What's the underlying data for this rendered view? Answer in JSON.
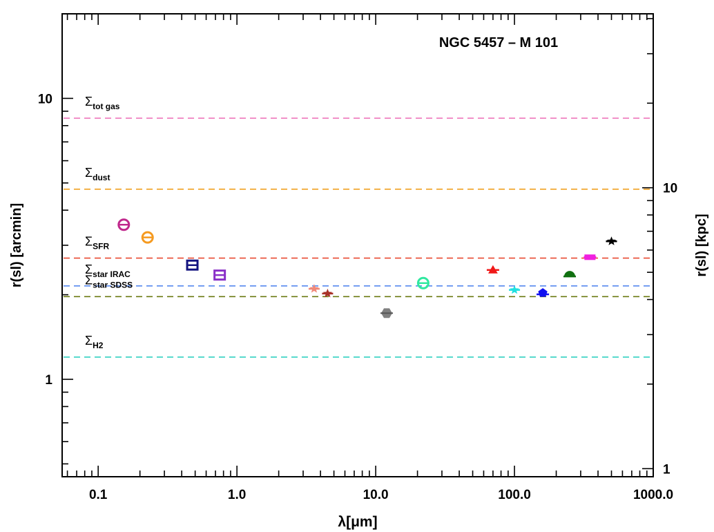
{
  "chart_data": {
    "type": "scatter",
    "title": "NGC 5457 – M 101",
    "xlabel": "λ[μm]",
    "ylabel": "r(sl) [arcmin]",
    "ylabel_right": "r(sl) [kpc]",
    "x_scale": "log",
    "y_scale": "log",
    "xlim": [
      0.055,
      1000
    ],
    "ylim": [
      0.45,
      20
    ],
    "x_ticks": [
      {
        "value": 0.1,
        "label": "0.1"
      },
      {
        "value": 1,
        "label": "1.0"
      },
      {
        "value": 10,
        "label": "10.0"
      },
      {
        "value": 100,
        "label": "100.0"
      },
      {
        "value": 1000,
        "label": "1000.0"
      }
    ],
    "y_ticks": [
      {
        "value": 1,
        "label": "1"
      },
      {
        "value": 10,
        "label": "10"
      }
    ],
    "right_axis": {
      "kpc_per_arcmin": 2.08,
      "ticks": [
        {
          "value": 1,
          "label": "1"
        },
        {
          "value": 10,
          "label": "10"
        }
      ]
    },
    "reference_lines": [
      {
        "label_main": "Σ",
        "label_sub": "tot gas",
        "y": 8.5,
        "color": "#ee77bb"
      },
      {
        "label_main": "Σ",
        "label_sub": "dust",
        "y": 4.75,
        "color": "#f0a020"
      },
      {
        "label_main": "Σ",
        "label_sub": "SFR",
        "y": 2.7,
        "color": "#e84830"
      },
      {
        "label_main": "Σ",
        "label_sub": "star IRAC",
        "y": 2.15,
        "color": "#5588ee"
      },
      {
        "label_main": "Σ",
        "label_sub": "star SDSS",
        "y": 1.97,
        "color": "#6b7a10"
      },
      {
        "label_main": "Σ",
        "label_sub": "H2",
        "y": 1.2,
        "color": "#30d0c0"
      }
    ],
    "points": [
      {
        "x": 0.153,
        "y": 3.55,
        "color": "#c0288c",
        "marker": "circle"
      },
      {
        "x": 0.227,
        "y": 3.2,
        "color": "#f59a20",
        "marker": "circle"
      },
      {
        "x": 0.477,
        "y": 2.55,
        "color": "#141480",
        "marker": "square"
      },
      {
        "x": 0.751,
        "y": 2.35,
        "color": "#8a30c8",
        "marker": "square"
      },
      {
        "x": 3.6,
        "y": 2.1,
        "color": "#f08878",
        "marker": "star"
      },
      {
        "x": 4.5,
        "y": 2.02,
        "color": "#a83228",
        "marker": "star"
      },
      {
        "x": 12,
        "y": 1.72,
        "color": "#808080",
        "marker": "hexagon"
      },
      {
        "x": 22,
        "y": 2.2,
        "color": "#30e8a0",
        "marker": "circle"
      },
      {
        "x": 70,
        "y": 2.45,
        "color": "#f01818",
        "marker": "triangle"
      },
      {
        "x": 100,
        "y": 2.08,
        "color": "#20e0e0",
        "marker": "star"
      },
      {
        "x": 160,
        "y": 2.03,
        "color": "#1010f0",
        "marker": "pentagon"
      },
      {
        "x": 250,
        "y": 2.35,
        "color": "#107010",
        "marker": "halfcircle"
      },
      {
        "x": 350,
        "y": 2.72,
        "color": "#f020e0",
        "marker": "bar"
      },
      {
        "x": 500,
        "y": 3.1,
        "color": "#000000",
        "marker": "star"
      }
    ]
  }
}
